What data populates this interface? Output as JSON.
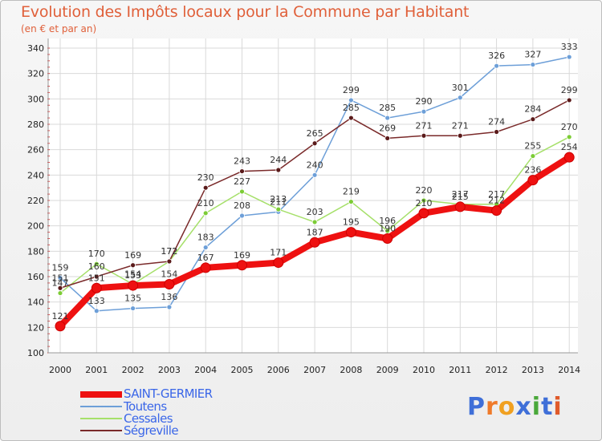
{
  "title": "Evolution des Impôts locaux pour la Commune par Habitant",
  "subtitle": "(en € et par an)",
  "logo": {
    "text": "Proxiti",
    "letter_colors": [
      "#3f6fd8",
      "#ef7a2a",
      "#f0a020",
      "#3f6fd8",
      "#4aa83a",
      "#3f6fd8",
      "#e05a2a"
    ]
  },
  "chart_data": {
    "type": "line",
    "x": [
      "2000",
      "2001",
      "2002",
      "2003",
      "2004",
      "2005",
      "2006",
      "2007",
      "2008",
      "2009",
      "2010",
      "2011",
      "2012",
      "2013",
      "2014"
    ],
    "y_ticks": [
      100,
      120,
      140,
      160,
      180,
      200,
      220,
      240,
      260,
      280,
      300,
      320,
      340
    ],
    "ylim": [
      100,
      340
    ],
    "grid": true,
    "legend_position": "bottom-left",
    "series": [
      {
        "name": "SAINT-GERMIER",
        "color": "#ee1111",
        "marker": "#ee1111",
        "values": [
          121,
          151,
          153,
          154,
          167,
          169,
          171,
          187,
          195,
          190,
          210,
          215,
          212,
          236,
          254
        ]
      },
      {
        "name": "Toutens",
        "color": "#6d9fd8",
        "marker": "#6d9fd8",
        "values": [
          159,
          133,
          135,
          136,
          183,
          208,
          211,
          240,
          299,
          285,
          290,
          301,
          326,
          327,
          333
        ]
      },
      {
        "name": "Cessales",
        "color": "#a6e06a",
        "marker": "#7ccc35",
        "values": [
          147,
          170,
          154,
          172,
          210,
          227,
          213,
          203,
          219,
          196,
          220,
          217,
          217,
          255,
          270
        ]
      },
      {
        "name": "Ségreville",
        "color": "#7a2a2a",
        "marker": "#5a1a1a",
        "values": [
          151,
          160,
          169,
          172,
          230,
          243,
          244,
          265,
          285,
          269,
          271,
          271,
          274,
          284,
          299
        ]
      }
    ]
  }
}
